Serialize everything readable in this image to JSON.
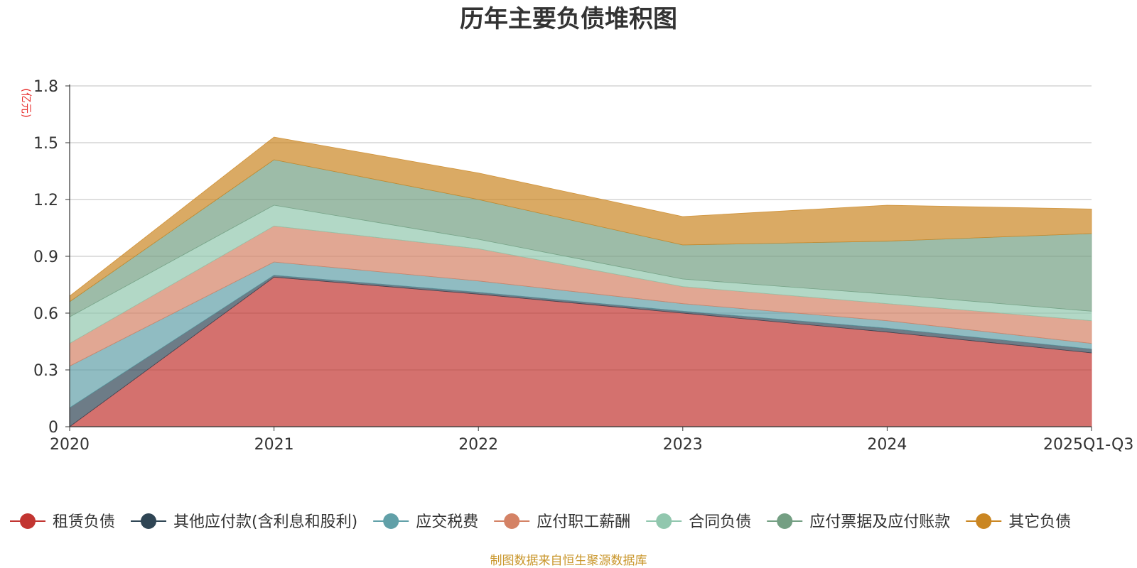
{
  "chart_data": {
    "type": "area",
    "stacked": true,
    "title": "历年主要负债堆积图",
    "unit": "(亿元)",
    "categories": [
      "2020",
      "2021",
      "2022",
      "2023",
      "2024",
      "2025Q1-Q3"
    ],
    "ylim": [
      0,
      1.8
    ],
    "yticks": [
      "0",
      "0.3",
      "0.6",
      "0.9",
      "1.2",
      "1.5",
      "1.8"
    ],
    "grid": true,
    "legend_position": "bottom",
    "series": [
      {
        "name": "租赁负债",
        "color": "#c23531",
        "values": [
          0.0,
          0.79,
          0.7,
          0.6,
          0.5,
          0.39
        ]
      },
      {
        "name": "其他应付款(含利息和股利)",
        "color": "#2f4554",
        "values": [
          0.1,
          0.01,
          0.01,
          0.01,
          0.02,
          0.02
        ]
      },
      {
        "name": "应交税费",
        "color": "#61a0a8",
        "values": [
          0.22,
          0.07,
          0.06,
          0.04,
          0.04,
          0.03
        ]
      },
      {
        "name": "应付职工薪酬",
        "color": "#d48265",
        "values": [
          0.12,
          0.19,
          0.17,
          0.09,
          0.09,
          0.12
        ]
      },
      {
        "name": "合同负债",
        "color": "#91c7ae",
        "values": [
          0.14,
          0.11,
          0.05,
          0.04,
          0.05,
          0.05
        ]
      },
      {
        "name": "应付票据及应付账款",
        "color": "#749f83",
        "values": [
          0.08,
          0.24,
          0.21,
          0.18,
          0.28,
          0.41
        ]
      },
      {
        "name": "其它负债",
        "color": "#ca8622",
        "values": [
          0.03,
          0.12,
          0.14,
          0.15,
          0.19,
          0.13
        ]
      }
    ],
    "source": "制图数据来自恒生聚源数据库"
  }
}
